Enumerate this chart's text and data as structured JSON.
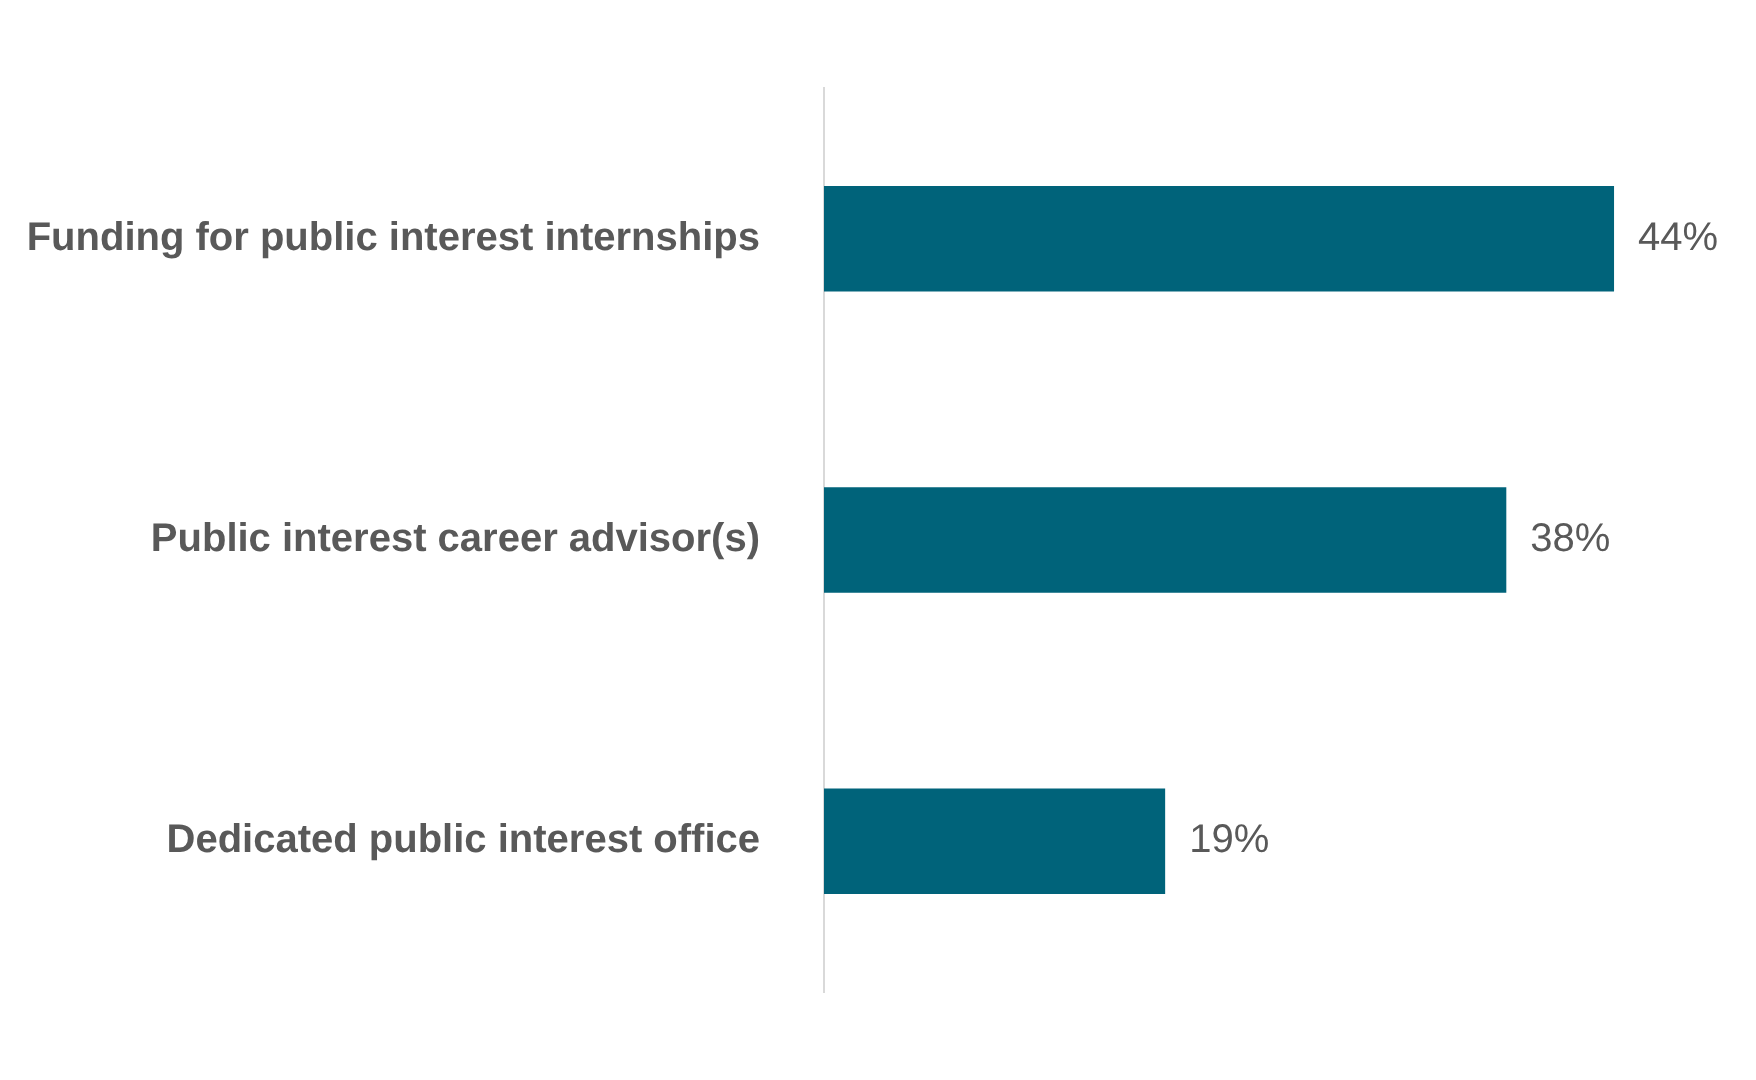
{
  "chart_data": {
    "type": "bar",
    "orientation": "horizontal",
    "categories": [
      "Funding for public interest internships",
      "Public interest career advisor(s)",
      "Dedicated public interest office"
    ],
    "values": [
      44,
      38,
      19
    ],
    "color": "#00637a",
    "value_labels": [
      "44%",
      "38%",
      "19%"
    ],
    "tick_labels": "y",
    "grid": false
  }
}
